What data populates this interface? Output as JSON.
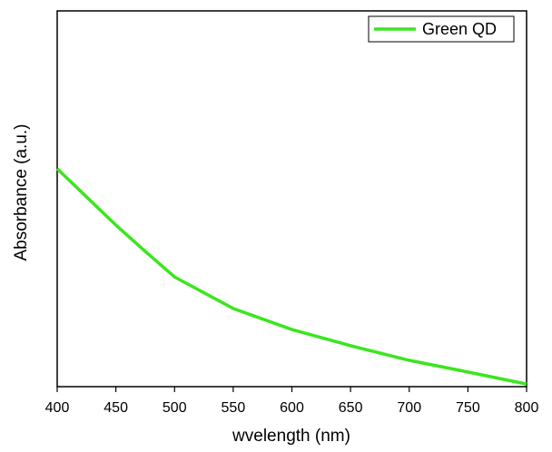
{
  "chart_data": {
    "type": "line",
    "x": [
      400,
      425,
      450,
      475,
      500,
      550,
      600,
      650,
      700,
      750,
      800
    ],
    "series": [
      {
        "name": "Green QD",
        "color": "#3ae61e",
        "values": [
          0.58,
          0.505,
          0.43,
          0.36,
          0.292,
          0.208,
          0.152,
          0.109,
          0.07,
          0.039,
          0.007
        ]
      }
    ],
    "xlim": [
      400,
      800
    ],
    "ylim": [
      0,
      1
    ],
    "xticks": [
      400,
      450,
      500,
      550,
      600,
      650,
      700,
      750,
      800
    ],
    "xlabel": "wvelength (nm)",
    "ylabel": "Absorbance (a.u.)",
    "legend": "upper-right",
    "grid": false
  }
}
